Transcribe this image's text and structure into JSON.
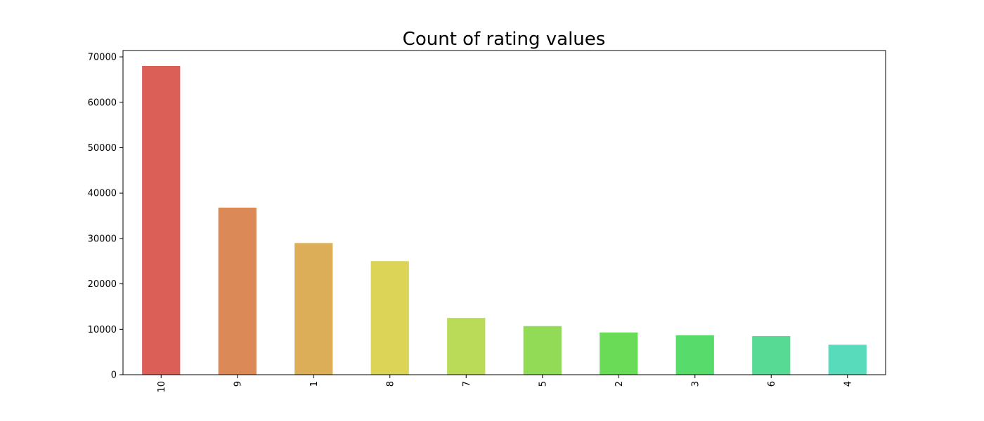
{
  "chart_data": {
    "type": "bar",
    "title": "Count of rating values",
    "xlabel": "",
    "ylabel": "",
    "categories": [
      "10",
      "9",
      "1",
      "8",
      "7",
      "5",
      "2",
      "3",
      "6",
      "4"
    ],
    "values": [
      68000,
      36800,
      29000,
      25000,
      12500,
      10700,
      9300,
      8700,
      8500,
      6600
    ],
    "colors": [
      "#db5f57",
      "#db8a57",
      "#dbae57",
      "#dbd457",
      "#b9db57",
      "#91db57",
      "#69db57",
      "#57db6a",
      "#57db94",
      "#57dbba"
    ],
    "ylim": [
      0,
      71400
    ],
    "yticks": [
      0,
      10000,
      20000,
      30000,
      40000,
      50000,
      60000,
      70000
    ],
    "xtick_rotation": 90,
    "grid": false,
    "legend": "none"
  }
}
